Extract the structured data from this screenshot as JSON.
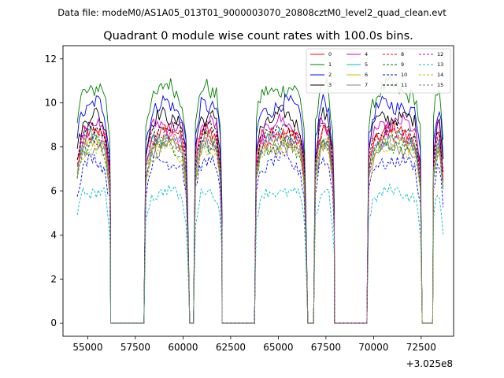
{
  "figure": {
    "suptitle": "Data file: modeM0/AS1A05_013T01_9000003070_20808cztM0_level2_quad_clean.evt"
  },
  "chart_data": {
    "type": "line",
    "title": "Quadrant 0 module wise count rates with 100.0s bins.",
    "xlabel": "",
    "ylabel": "",
    "x_offset_label": "+3.025e8",
    "xlim": [
      53700,
      74200
    ],
    "ylim": [
      -0.6,
      12.6
    ],
    "xticks": [
      55000,
      57500,
      60000,
      62500,
      65000,
      67500,
      70000,
      72500
    ],
    "yticks": [
      0,
      2,
      4,
      6,
      8,
      10,
      12
    ],
    "segments": [
      {
        "start": 54450,
        "end": 56150
      },
      {
        "start": 58050,
        "end": 60200
      },
      {
        "start": 60650,
        "end": 62000
      },
      {
        "start": 63850,
        "end": 66400
      },
      {
        "start": 66950,
        "end": 67900
      },
      {
        "start": 69750,
        "end": 72450
      },
      {
        "start": 73150,
        "end": 73650
      }
    ],
    "gaps_at_zero": [
      [
        56200,
        57950
      ],
      [
        60350,
        60550
      ],
      [
        62050,
        63750
      ],
      [
        66550,
        66850
      ],
      [
        67950,
        69650
      ],
      [
        72550,
        73100
      ]
    ],
    "series": [
      {
        "name": "0",
        "level": 8.2,
        "color": "#ff0000",
        "dash": "solid"
      },
      {
        "name": "1",
        "level": 10.0,
        "color": "#008000",
        "dash": "solid"
      },
      {
        "name": "2",
        "level": 9.3,
        "color": "#0000ff",
        "dash": "solid"
      },
      {
        "name": "3",
        "level": 8.8,
        "color": "#000000",
        "dash": "solid"
      },
      {
        "name": "4",
        "level": 8.5,
        "color": "#cc00cc",
        "dash": "solid"
      },
      {
        "name": "5",
        "level": 7.9,
        "color": "#00bfbf",
        "dash": "solid"
      },
      {
        "name": "6",
        "level": 7.8,
        "color": "#bfbf00",
        "dash": "solid"
      },
      {
        "name": "7",
        "level": 7.5,
        "color": "#808080",
        "dash": "solid"
      },
      {
        "name": "8",
        "level": 8.0,
        "color": "#ff0000",
        "dash": "dashed"
      },
      {
        "name": "9",
        "level": 7.6,
        "color": "#008000",
        "dash": "dashed"
      },
      {
        "name": "10",
        "level": 6.9,
        "color": "#0000ff",
        "dash": "dashed"
      },
      {
        "name": "11",
        "level": 8.3,
        "color": "#000000",
        "dash": "dashed"
      },
      {
        "name": "12",
        "level": 7.9,
        "color": "#cc00cc",
        "dash": "dashed"
      },
      {
        "name": "13",
        "level": 5.6,
        "color": "#00bfbf",
        "dash": "dashed"
      },
      {
        "name": "14",
        "level": 7.4,
        "color": "#bfbf00",
        "dash": "dashed"
      },
      {
        "name": "15",
        "level": 7.7,
        "color": "#808080",
        "dash": "dashed"
      }
    ],
    "legend": {
      "location": "top-right",
      "columns": 4
    }
  }
}
